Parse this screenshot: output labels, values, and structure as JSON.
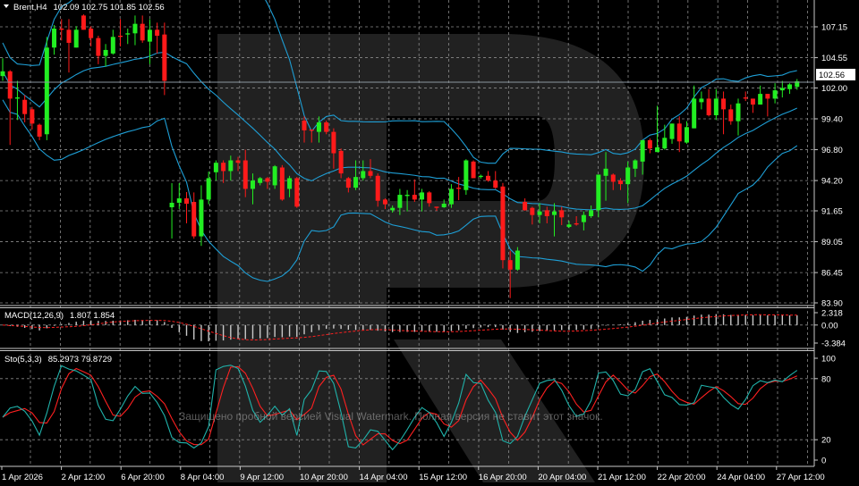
{
  "header": {
    "symbol_label": "Brent,H4",
    "ohlc_readout": "102.09 102.75 101.85 102.56"
  },
  "current_price_label": "102.56",
  "watermark_text": "Защищено пробной версией Visual Watermark. Полная версия не ставит этот значок.",
  "colors": {
    "background": "#000000",
    "bull": "#22ee22",
    "bear": "#ff1a1a",
    "bands": "#1e9fd6",
    "grid": "#8a8a8a",
    "stoch_main": "#20b2aa",
    "stoch_signal": "#ff2020",
    "macd_hist": "#c8c8c8",
    "macd_signal": "#ff2020"
  },
  "chart_data": {
    "type": "candlestick",
    "symbol": "Brent",
    "timeframe": "H4",
    "grid": true,
    "y_ticks": [
      "107.15",
      "104.55",
      "102.00",
      "99.40",
      "96.80",
      "94.20",
      "91.65",
      "89.05",
      "86.45",
      "83.90"
    ],
    "ylim": [
      83.9,
      107.15
    ],
    "x_ticks": [
      "1 Apr 2026",
      "2 Apr 12:00",
      "6 Apr 20:00",
      "8 Apr 04:00",
      "9 Apr 12:00",
      "10 Apr 20:00",
      "14 Apr 04:00",
      "15 Apr 12:00",
      "16 Apr 20:00",
      "20 Apr 04:00",
      "21 Apr 12:00",
      "22 Apr 20:00",
      "24 Apr 04:00",
      "27 Apr 12:00"
    ],
    "ohlc_fields": [
      "open",
      "high",
      "low",
      "close"
    ],
    "ohlc": [
      [
        103.0,
        104.5,
        102.6,
        103.4
      ],
      [
        103.4,
        103.5,
        97.2,
        101.1
      ],
      [
        101.1,
        102.6,
        99.3,
        101.2
      ],
      [
        101.0,
        101.4,
        99.1,
        99.8
      ],
      [
        100.2,
        100.4,
        98.5,
        99.0
      ],
      [
        98.9,
        99.0,
        97.6,
        97.9
      ],
      [
        98.1,
        106.3,
        97.6,
        105.4
      ],
      [
        105.4,
        107.3,
        104.8,
        107.0
      ],
      [
        107.0,
        107.8,
        106.0,
        106.9
      ],
      [
        106.9,
        107.8,
        103.3,
        105.8
      ],
      [
        105.4,
        107.2,
        105.4,
        106.9
      ],
      [
        108.1,
        108.2,
        106.9,
        106.9
      ],
      [
        107.0,
        107.2,
        105.5,
        106.2
      ],
      [
        106.2,
        106.4,
        104.0,
        104.7
      ],
      [
        104.7,
        105.7,
        103.8,
        105.2
      ],
      [
        104.9,
        106.9,
        104.8,
        106.3
      ],
      [
        106.4,
        107.8,
        105.5,
        106.3
      ],
      [
        106.5,
        107.0,
        105.7,
        106.6
      ],
      [
        106.6,
        108.1,
        105.6,
        107.4
      ],
      [
        107.4,
        108.1,
        105.8,
        106.0
      ],
      [
        105.9,
        107.8,
        104.0,
        106.9
      ],
      [
        106.9,
        107.5,
        104.9,
        106.4
      ],
      [
        106.5,
        107.5,
        101.4,
        102.6
      ],
      [
        91.95,
        93.98,
        89.32,
        92.33
      ],
      [
        92.33,
        93.98,
        91.8,
        92.7
      ],
      [
        92.7,
        93.23,
        90.6,
        92.25
      ],
      [
        92.4,
        93.2,
        89.3,
        89.5
      ],
      [
        89.5,
        93.8,
        88.7,
        92.6
      ],
      [
        92.6,
        94.96,
        92.2,
        94.4
      ],
      [
        94.9,
        95.9,
        94.2,
        95.7
      ],
      [
        95.7,
        95.9,
        94.0,
        95.0
      ],
      [
        95.0,
        96.3,
        94.2,
        95.9
      ],
      [
        95.9,
        96.2,
        95.0,
        95.7
      ],
      [
        95.9,
        96.8,
        92.8,
        93.5
      ],
      [
        93.5,
        94.8,
        92.2,
        94.2
      ],
      [
        94.0,
        94.5,
        93.8,
        94.4
      ],
      [
        94.4,
        94.5,
        93.5,
        94.1
      ],
      [
        93.8,
        95.5,
        93.5,
        95.4
      ],
      [
        95.3,
        95.5,
        92.5,
        92.6
      ],
      [
        93.5,
        94.6,
        92.8,
        94.4
      ],
      [
        94.4,
        94.5,
        91.9,
        92.0
      ],
      [
        99.25,
        99.6,
        97.4,
        98.43
      ],
      [
        98.5,
        98.5,
        97.4,
        98.4
      ],
      [
        98.3,
        99.6,
        97.4,
        99.1
      ],
      [
        99.1,
        99.25,
        98.1,
        98.3
      ],
      [
        98.3,
        98.6,
        95.2,
        96.5
      ],
      [
        96.7,
        96.9,
        94.4,
        94.8
      ],
      [
        94.4,
        94.5,
        93.2,
        93.6
      ],
      [
        93.6,
        95.9,
        93.4,
        94.5
      ],
      [
        94.4,
        95.9,
        94.2,
        95.0
      ],
      [
        95.0,
        96.0,
        94.4,
        94.6
      ],
      [
        94.6,
        94.8,
        92.0,
        92.5
      ],
      [
        92.6,
        92.7,
        91.8,
        92.2
      ],
      [
        91.7,
        92.1,
        91.5,
        91.9
      ],
      [
        91.9,
        93.5,
        91.3,
        93.0
      ],
      [
        92.9,
        93.4,
        91.6,
        93.0
      ],
      [
        93.0,
        94.3,
        92.4,
        92.6
      ],
      [
        92.6,
        93.5,
        91.6,
        93.2
      ],
      [
        93.2,
        93.3,
        92.0,
        92.3
      ],
      [
        92.0,
        92.0,
        91.65,
        91.9
      ],
      [
        91.95,
        92.6,
        91.9,
        92.25
      ],
      [
        92.2,
        93.9,
        91.9,
        93.5
      ],
      [
        93.6,
        94.5,
        92.55,
        93.5
      ],
      [
        93.4,
        96.0,
        93.0,
        95.9
      ],
      [
        95.8,
        95.9,
        94.4,
        94.4
      ],
      [
        94.5,
        94.7,
        94.36,
        94.6
      ],
      [
        94.6,
        95.0,
        94.1,
        94.2
      ],
      [
        94.2,
        95.0,
        93.5,
        93.6
      ],
      [
        93.7,
        94.0,
        86.8,
        87.5
      ],
      [
        87.5,
        88.3,
        84.3,
        86.7
      ],
      [
        86.7,
        88.6,
        86.6,
        88.3
      ],
      [
        92.4,
        92.7,
        91.65,
        91.7
      ],
      [
        91.9,
        92.0,
        90.5,
        91.3
      ],
      [
        91.3,
        92.3,
        90.6,
        91.6
      ],
      [
        91.7,
        92.0,
        90.6,
        91.2
      ],
      [
        91.3,
        92.3,
        89.5,
        91.6
      ],
      [
        91.7,
        92.0,
        90.45,
        91.1
      ],
      [
        90.3,
        90.8,
        90.2,
        90.5
      ],
      [
        90.6,
        91.2,
        90.4,
        90.5
      ],
      [
        90.7,
        91.6,
        90.0,
        91.3
      ],
      [
        91.2,
        92.1,
        91.05,
        91.7
      ],
      [
        91.7,
        94.7,
        91.1,
        94.7
      ],
      [
        94.6,
        96.6,
        92.5,
        95.2
      ],
      [
        94.7,
        94.8,
        93.4,
        94.1
      ],
      [
        94.2,
        94.4,
        93.4,
        93.9
      ],
      [
        93.9,
        95.8,
        92.3,
        95.3
      ],
      [
        95.2,
        96.0,
        94.5,
        95.9
      ],
      [
        95.8,
        97.6,
        94.7,
        97.6
      ],
      [
        97.6,
        97.75,
        96.5,
        96.9
      ],
      [
        96.6,
        100.5,
        96.6,
        97.0
      ],
      [
        96.9,
        98.9,
        96.8,
        97.8
      ],
      [
        97.7,
        99.0,
        97.3,
        99.0
      ],
      [
        99.0,
        99.6,
        96.6,
        97.5
      ],
      [
        97.4,
        99.2,
        97.3,
        98.7
      ],
      [
        98.6,
        102.2,
        98.6,
        101.1
      ],
      [
        100.8,
        101.7,
        100.2,
        101.1
      ],
      [
        101.1,
        101.9,
        99.6,
        99.7
      ],
      [
        99.7,
        101.9,
        99.3,
        101.1
      ],
      [
        101.1,
        101.7,
        98.1,
        100.2
      ],
      [
        100.2,
        100.6,
        98.9,
        99.2
      ],
      [
        99.2,
        101.1,
        98.0,
        100.7
      ],
      [
        101.2,
        101.7,
        100.9,
        101.1
      ],
      [
        101.1,
        101.1,
        99.9,
        100.6
      ],
      [
        100.6,
        102.2,
        100.6,
        101.5
      ],
      [
        101.5,
        101.5,
        99.6,
        101.1
      ],
      [
        101.1,
        102.4,
        100.7,
        101.8
      ],
      [
        101.8,
        102.6,
        101.2,
        102.0
      ],
      [
        101.9,
        102.4,
        101.5,
        102.3
      ],
      [
        102.09,
        102.75,
        101.85,
        102.56
      ]
    ],
    "last_price": 102.56,
    "overlays": [
      {
        "type": "bollinger_bands"
      }
    ],
    "indicators": [
      {
        "type": "macd",
        "label": "MACD(12,26,9)",
        "readout": "1.807 1.854",
        "y_ticks": [
          "2.318",
          "0.00",
          "-3.384"
        ],
        "ylim": [
          -3.384,
          2.318
        ]
      },
      {
        "type": "stochastic",
        "label": "Sto(5,3,3)",
        "readout": "85.2973 79.8729",
        "y_ticks": [
          "100",
          "80",
          "20",
          "0"
        ],
        "ylim": [
          0,
          100
        ]
      }
    ]
  }
}
